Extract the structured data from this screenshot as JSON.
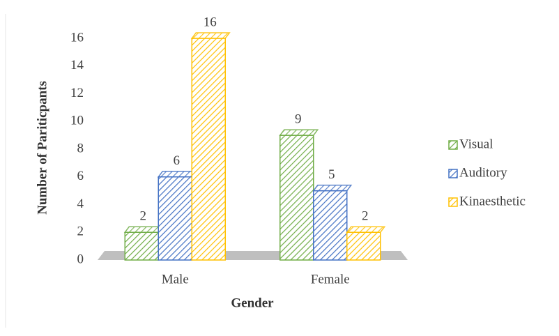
{
  "chart_data": {
    "type": "bar",
    "x_label": "Gender",
    "y_label": "Number of Pariticpants",
    "categories": [
      "Male",
      "Female"
    ],
    "series": [
      {
        "name": "Visual",
        "color": "#70ad47",
        "values": [
          2,
          9
        ]
      },
      {
        "name": "Auditory",
        "color": "#4472c4",
        "values": [
          6,
          5
        ]
      },
      {
        "name": "Kinaesthetic",
        "color": "#ffc000",
        "values": [
          16,
          2
        ]
      }
    ],
    "ylim": [
      0,
      16
    ],
    "yticks": [
      0,
      2,
      4,
      6,
      8,
      10,
      12,
      14,
      16
    ],
    "grid": false,
    "legend": "right"
  }
}
